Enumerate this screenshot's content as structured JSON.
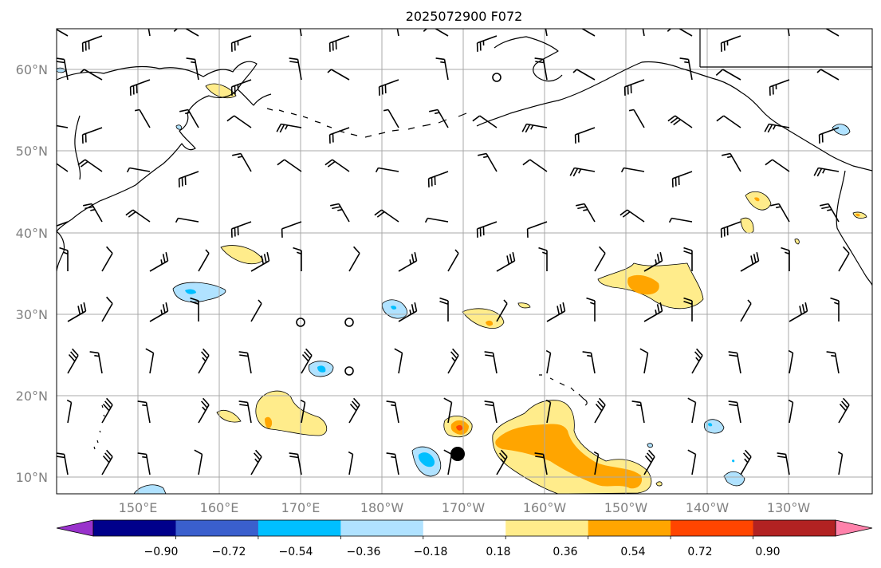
{
  "title": "2025072900 F072",
  "lat_labels": [
    "60°N",
    "50°N",
    "40°N",
    "30°N",
    "20°N",
    "10°N"
  ],
  "lon_labels": [
    "150°E",
    "160°E",
    "170°E",
    "180°W",
    "170°W",
    "160°W",
    "150°W",
    "140°W",
    "130°W"
  ],
  "colorbar": {
    "tick_labels": [
      "−0.90",
      "−0.72",
      "−0.54",
      "−0.36",
      "−0.18",
      "0.18",
      "0.36",
      "0.54",
      "0.72",
      "0.90"
    ],
    "colors": [
      "#9932cc",
      "#00008b",
      "#3a5fcd",
      "#00bfff",
      "#b0e2ff",
      "#ffffff",
      "#ffec8b",
      "#ffa500",
      "#ff4500",
      "#b22222",
      "#ff82ab"
    ]
  },
  "legend_colors": {
    "light_blue": "#b0e2ff",
    "blue": "#00bfff",
    "light_yellow": "#ffec8b",
    "orange": "#ffa500",
    "red_orange": "#ff4500"
  }
}
